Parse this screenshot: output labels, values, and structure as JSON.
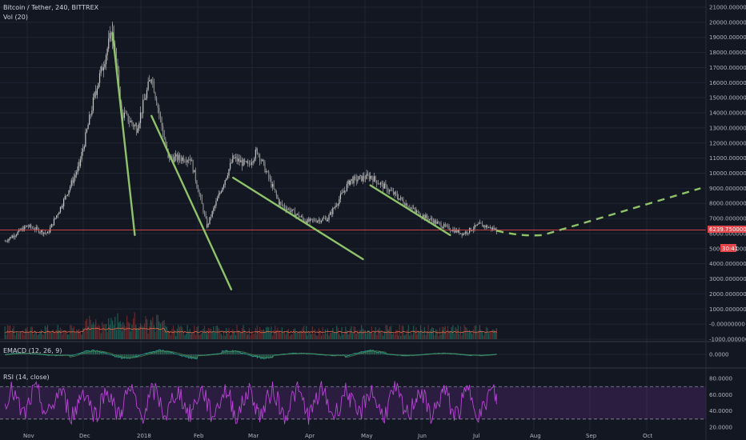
{
  "chart_data": [
    {
      "type": "candlestick",
      "title": "Bitcoin / Tether, 240, BITTREX",
      "symbol": "Bitcoin / Tether",
      "interval": "240",
      "exchange": "BITTREX",
      "x_ticks": [
        "Nov",
        "Dec",
        "2018",
        "Feb",
        "Mar",
        "Apr",
        "May",
        "Jun",
        "Jul",
        "Aug",
        "Sep",
        "Oct"
      ],
      "y_ticks": [
        "21000.00000000",
        "20000.00000000",
        "19000.00000000",
        "18000.00000000",
        "17000.00000000",
        "16000.00000000",
        "15000.00000000",
        "14000.00000000",
        "13000.00000000",
        "12000.00000000",
        "11000.00000000",
        "10000.00000000",
        "9000.00000000",
        "8000.00000000",
        "7000.00000000",
        "6000.00000000",
        "5000.00000000",
        "4000.00000000",
        "3000.00000000",
        "2000.00000000",
        "1000.00000000",
        "-0.00000000",
        "-1000.00000000"
      ],
      "ylim": [
        -1000,
        21000
      ],
      "grid": true,
      "price_path_key_points": [
        {
          "date": "2017-10-20",
          "price": 5500
        },
        {
          "date": "2017-11-01",
          "price": 6500
        },
        {
          "date": "2017-11-12",
          "price": 6000
        },
        {
          "date": "2017-11-20",
          "price": 8000
        },
        {
          "date": "2017-11-29",
          "price": 10500
        },
        {
          "date": "2017-12-08",
          "price": 15500
        },
        {
          "date": "2017-12-17",
          "price": 19500
        },
        {
          "date": "2017-12-22",
          "price": 14000
        },
        {
          "date": "2017-12-30",
          "price": 13000
        },
        {
          "date": "2018-01-07",
          "price": 16500
        },
        {
          "date": "2018-01-16",
          "price": 11000
        },
        {
          "date": "2018-01-28",
          "price": 11000
        },
        {
          "date": "2018-02-06",
          "price": 6500
        },
        {
          "date": "2018-02-20",
          "price": 11000
        },
        {
          "date": "2018-02-28",
          "price": 10500
        },
        {
          "date": "2018-03-05",
          "price": 11500
        },
        {
          "date": "2018-03-17",
          "price": 8000
        },
        {
          "date": "2018-04-01",
          "price": 6800
        },
        {
          "date": "2018-04-12",
          "price": 7000
        },
        {
          "date": "2018-04-24",
          "price": 9500
        },
        {
          "date": "2018-05-05",
          "price": 9800
        },
        {
          "date": "2018-05-20",
          "price": 8400
        },
        {
          "date": "2018-05-30",
          "price": 7400
        },
        {
          "date": "2018-06-13",
          "price": 6500
        },
        {
          "date": "2018-06-24",
          "price": 6000
        },
        {
          "date": "2018-07-03",
          "price": 6600
        },
        {
          "date": "2018-07-12",
          "price": 6240
        }
      ],
      "last_price_label": "6239.75000000",
      "countdown_label": "30:41",
      "trend_lines": [
        {
          "from": {
            "date": "2017-12-17",
            "price": 19300
          },
          "to": {
            "date": "2017-12-29",
            "price": 5900
          }
        },
        {
          "from": {
            "date": "2018-01-07",
            "price": 13800
          },
          "to": {
            "date": "2018-02-19",
            "price": 2300
          }
        },
        {
          "from": {
            "date": "2018-02-20",
            "price": 9700
          },
          "to": {
            "date": "2018-05-01",
            "price": 4300
          }
        },
        {
          "from": {
            "date": "2018-05-05",
            "price": 9200
          },
          "to": {
            "date": "2018-06-17",
            "price": 5900
          }
        }
      ],
      "projection": [
        {
          "date": "2018-07-12",
          "price": 6200
        },
        {
          "date": "2018-08-06",
          "price": 5900
        },
        {
          "date": "2018-10-30",
          "price": 9000
        }
      ],
      "colors": {
        "up": "#26a69a",
        "down": "#ef5350",
        "candle": "#c8c8c8",
        "trend": "#8fc36a",
        "last_price": "#e0464a",
        "background": "#131722",
        "grid": "#1f2533"
      }
    },
    {
      "type": "volume",
      "title": "Vol (20)",
      "y_ticks": [
        "1000.00000000",
        "-0.00000000",
        "-1000.00000000"
      ]
    },
    {
      "type": "line",
      "title": "EMACD (12, 26, 9)",
      "y_ticks": [
        "0.0000"
      ]
    },
    {
      "type": "line",
      "title": "RSI (14, close)",
      "y_ticks": [
        "80.0000",
        "60.0000",
        "40.0000",
        "20.0000"
      ],
      "ylim": [
        17,
        90
      ],
      "bands": [
        30,
        70
      ],
      "colors": {
        "line": "#b845d6",
        "band": "rgba(155,60,200,0.18)"
      }
    }
  ]
}
